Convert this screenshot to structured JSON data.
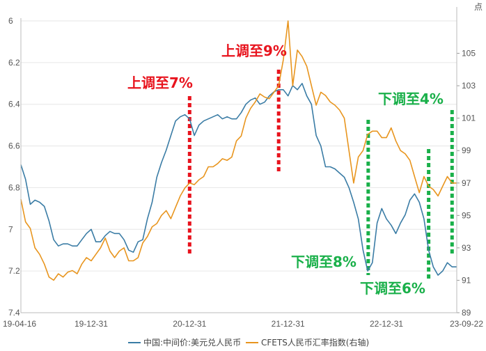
{
  "chart_data": {
    "type": "line",
    "unit_label": "点",
    "x_tick_labels": [
      "19-04-16",
      "19-12-31",
      "20-12-31",
      "21-12-31",
      "22-12-31",
      "23-09-22"
    ],
    "x_tick_index": [
      0,
      15,
      36,
      57,
      78,
      93
    ],
    "left_axis": {
      "ticks": [
        6,
        6.2,
        6.4,
        6.6,
        6.8,
        7,
        7.2,
        7.4
      ],
      "tick_labels": [
        "6",
        "6.2",
        "6.4",
        "6.6",
        "6.8",
        "7",
        "7.2",
        "7.4"
      ],
      "range": [
        6,
        7.4
      ],
      "inverted": true
    },
    "right_axis": {
      "ticks": [
        89,
        91,
        93,
        95,
        97,
        99,
        101,
        103,
        105
      ],
      "range": [
        89,
        107
      ]
    },
    "series": [
      {
        "name": "中国:中间价:美元兑人民币",
        "color": "#3a7ca5",
        "axis": "left",
        "values": [
          6.69,
          6.76,
          6.88,
          6.86,
          6.87,
          6.89,
          6.96,
          7.05,
          7.08,
          7.07,
          7.07,
          7.08,
          7.08,
          7.05,
          7.02,
          7.0,
          7.06,
          7.06,
          7.03,
          7.01,
          7.02,
          7.02,
          7.05,
          7.1,
          7.11,
          7.06,
          7.05,
          6.95,
          6.87,
          6.75,
          6.68,
          6.62,
          6.55,
          6.48,
          6.46,
          6.45,
          6.47,
          6.55,
          6.5,
          6.48,
          6.47,
          6.46,
          6.45,
          6.47,
          6.46,
          6.47,
          6.47,
          6.44,
          6.4,
          6.38,
          6.37,
          6.4,
          6.39,
          6.36,
          6.34,
          6.33,
          6.33,
          6.36,
          6.31,
          6.33,
          6.3,
          6.36,
          6.4,
          6.55,
          6.6,
          6.7,
          6.7,
          6.71,
          6.73,
          6.75,
          6.8,
          6.87,
          6.95,
          7.1,
          7.2,
          7.16,
          6.97,
          6.9,
          6.95,
          6.98,
          7.02,
          6.97,
          6.93,
          6.86,
          6.83,
          6.87,
          6.95,
          7.1,
          7.18,
          7.22,
          7.2,
          7.16,
          7.18,
          7.18
        ]
      },
      {
        "name": "CFETS人民币汇率指数(右轴)",
        "color": "#e8951e",
        "axis": "right",
        "values": [
          96.0,
          94.6,
          94.2,
          93.0,
          92.6,
          92.0,
          91.2,
          91.0,
          91.4,
          91.2,
          91.5,
          91.6,
          91.4,
          92.0,
          92.4,
          92.2,
          92.6,
          93.0,
          93.6,
          92.8,
          92.4,
          92.8,
          93.0,
          92.2,
          92.2,
          92.4,
          93.3,
          93.7,
          94.3,
          94.5,
          95.0,
          95.3,
          94.8,
          95.5,
          96.2,
          96.7,
          97.0,
          96.9,
          97.2,
          97.4,
          98.0,
          98.0,
          98.2,
          98.5,
          98.4,
          98.6,
          99.6,
          99.9,
          101.0,
          101.6,
          102.0,
          102.5,
          102.3,
          102.2,
          102.6,
          103.0,
          104.6,
          107.0,
          103.0,
          105.2,
          104.8,
          104.2,
          103.0,
          101.8,
          102.6,
          102.4,
          102.0,
          101.8,
          101.5,
          101.0,
          99.0,
          97.0,
          98.6,
          99.0,
          100.0,
          100.2,
          100.2,
          99.8,
          99.8,
          100.4,
          99.6,
          99.0,
          98.8,
          98.4,
          97.4,
          96.4,
          97.4,
          96.8,
          96.6,
          96.2,
          96.8,
          97.4,
          97.0,
          97.0
        ]
      }
    ],
    "annotations": [
      {
        "text": "上调至7%",
        "color": "#e8141e",
        "series_index": 36
      },
      {
        "text": "上调至9%",
        "color": "#e8141e",
        "series_index": 55
      },
      {
        "text": "下调至8%",
        "color": "#1ab04a",
        "series_index": 75
      },
      {
        "text": "下调至6%",
        "color": "#1ab04a",
        "series_index": 87
      },
      {
        "text": "下调至4%",
        "color": "#1ab04a",
        "series_index": 92
      }
    ]
  }
}
